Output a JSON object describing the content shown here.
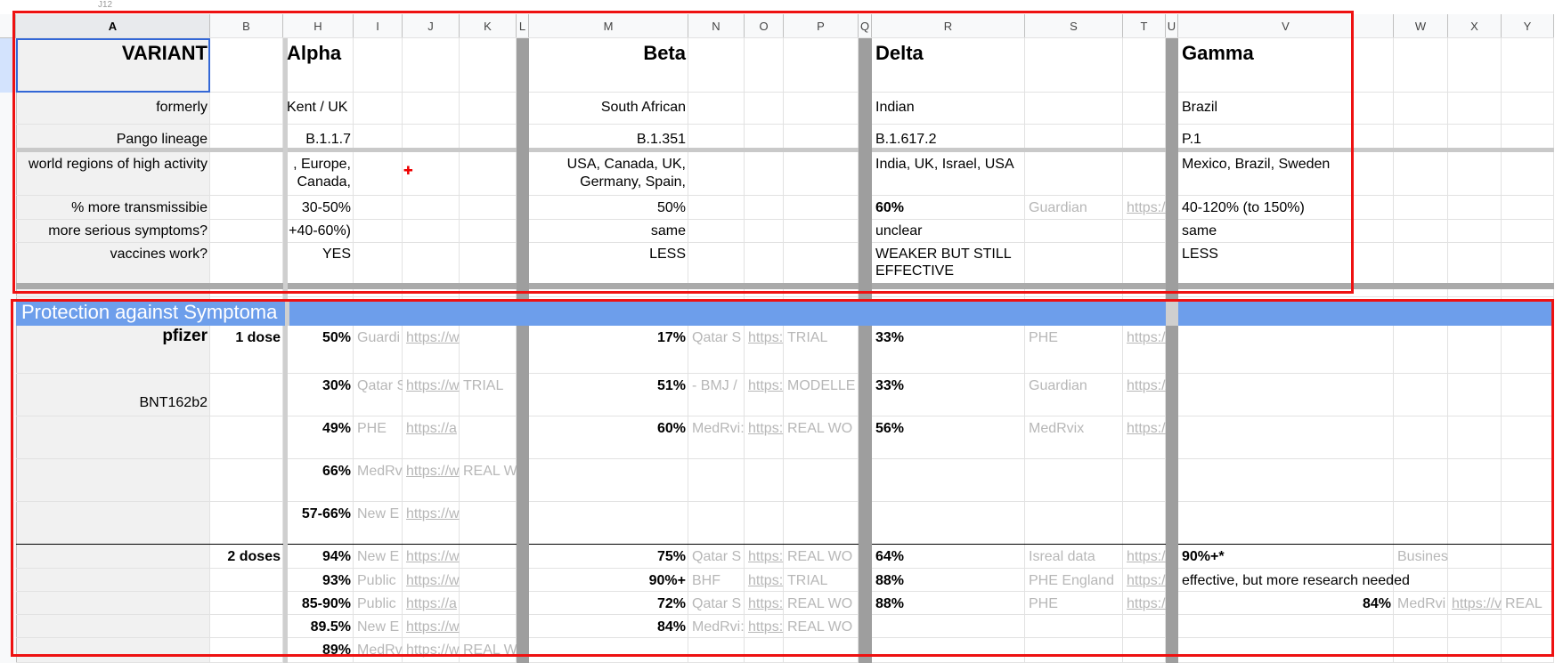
{
  "top_fragment": "J12",
  "columns": [
    "A",
    "B",
    "H",
    "I",
    "J",
    "K",
    "L",
    "M",
    "N",
    "O",
    "P",
    "Q",
    "R",
    "S",
    "T",
    "U",
    "V",
    "W",
    "X",
    "Y"
  ],
  "selected_column": "A",
  "variant_header": {
    "label": "VARIANT",
    "alpha": "Alpha",
    "beta": "Beta",
    "delta": "Delta",
    "gamma": "Gamma"
  },
  "rows": {
    "formerly": {
      "label": "formerly",
      "alpha": "Kent / UK",
      "beta": "South African",
      "delta": "Indian",
      "gamma": "Brazil"
    },
    "pango": {
      "label": "Pango lineage",
      "alpha": "B.1.1.7",
      "beta": "B.1.351",
      "delta": "B.1.617.2",
      "gamma": "P.1"
    },
    "regions": {
      "label": "world regions of high activity",
      "alpha": ", Europe,",
      "alpha2": "Canada,",
      "beta": "USA, Canada, UK,",
      "beta2": "Germany, Spain,",
      "delta": "India, UK, Israel, USA",
      "gamma": "Mexico, Brazil, Sweden"
    },
    "transmissible": {
      "label": "% more transmissibie",
      "alpha": "30-50%",
      "beta": "50%",
      "delta": "60%",
      "delta_source": "Guardian",
      "delta_link": "https://",
      "gamma": "40-120% (to 150%)"
    },
    "serious": {
      "label": "more serious symptoms?",
      "alpha": "+40-60%)",
      "beta": "same",
      "delta": "unclear",
      "gamma": "same"
    },
    "vaccines": {
      "label": "vaccines work?",
      "alpha": "YES",
      "beta": "LESS",
      "delta": "WEAKER BUT STILL EFFECTIVE",
      "gamma": "LESS"
    }
  },
  "banner": "Protection against Symptoma",
  "pfizer": {
    "name": "pfizer",
    "code": "BNT162b2",
    "dose1": "1 dose",
    "dose2": "2 doses",
    "d1": [
      {
        "alpha": "50%",
        "a_src": "Guardi",
        "a_link": "https://w",
        "a_type": "",
        "beta": "17%",
        "b_src": "Qatar S",
        "b_link": "https:",
        "b_type": "TRIAL",
        "delta": "33%",
        "d_src": "PHE",
        "d_link": "https://"
      },
      {
        "alpha": "30%",
        "a_src": "Qatar S",
        "a_link": "https://w",
        "a_type": "TRIAL",
        "beta": "51%",
        "b_src": "- BMJ /",
        "b_link": "https:",
        "b_type": "MODELLE",
        "delta": "33%",
        "d_src": "Guardian",
        "d_link": "https://"
      },
      {
        "alpha": "49%",
        "a_src": "PHE",
        "a_link": "https://a",
        "a_type": "",
        "beta": "60%",
        "b_src": "MedRvi:",
        "b_link": "https:",
        "b_type": "REAL WO",
        "delta": "56%",
        "d_src": "MedRvix",
        "d_link": "https://R"
      },
      {
        "alpha": "66%",
        "a_src": "MedRv",
        "a_link": "https://w",
        "a_type": "REAL W",
        "beta": "",
        "b_src": "",
        "b_link": "",
        "b_type": "",
        "delta": "",
        "d_src": "",
        "d_link": ""
      },
      {
        "alpha": "57-66%",
        "a_src": "New E",
        "a_link": "https://w",
        "a_type": "",
        "beta": "",
        "b_src": "",
        "b_link": "",
        "b_type": "",
        "delta": "",
        "d_src": "",
        "d_link": ""
      }
    ],
    "d2": [
      {
        "alpha": "94%",
        "a_src": "New E",
        "a_link": "https://w",
        "a_type": "",
        "beta": "75%",
        "b_src": "Qatar S",
        "b_link": "https:",
        "b_type": "REAL WO",
        "delta": "64%",
        "d_src": "Isreal data",
        "d_link": "https://",
        "gamma": "90%+*",
        "g_src": "Busines"
      },
      {
        "alpha": "93%",
        "a_src": "Public",
        "a_link": "https://w",
        "a_type": "",
        "beta": "90%+",
        "b_src": "BHF",
        "b_link": "https:",
        "b_type": "TRIAL",
        "delta": "88%",
        "d_src": "PHE England",
        "d_link": "https://",
        "gamma": "effective, but more research needed"
      },
      {
        "alpha": "85-90%",
        "a_src": "Public",
        "a_link": "https://a",
        "a_type": "",
        "beta": "72%",
        "b_src": "Qatar S",
        "b_link": "https:",
        "b_type": "REAL WO",
        "delta": "88%",
        "d_src": "PHE",
        "d_link": "https://",
        "gamma_num": "84%",
        "g_src": "MedRvi",
        "g_link": "https://v",
        "g_type": "REAL"
      },
      {
        "alpha": "89.5%",
        "a_src": "New E",
        "a_link": "https://w",
        "a_type": "",
        "beta": "84%",
        "b_src": "MedRvi:",
        "b_link": "https:",
        "b_type": "REAL WO"
      },
      {
        "alpha": "89%",
        "a_src": "MedRv",
        "a_link": "https://w",
        "a_type": "REAL W"
      }
    ]
  },
  "colors": {
    "banner": "#6d9eeb",
    "highlight_box": "#ee1111",
    "gutter": "#9e9e9e",
    "muted_text": "#b7b7b7"
  }
}
